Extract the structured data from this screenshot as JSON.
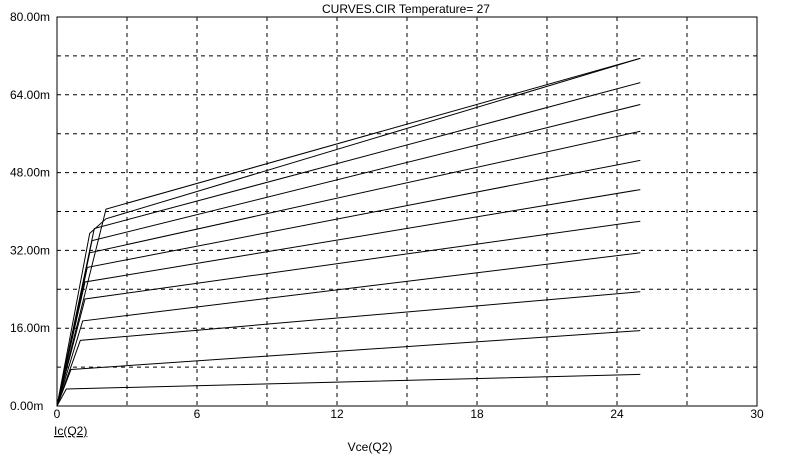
{
  "chart_data": {
    "type": "line",
    "title": "CURVES.CIR Temperature= 27",
    "xlabel": "Vce(Q2)",
    "ylabel": "Ic(Q2)",
    "xlim": [
      0,
      30
    ],
    "ylim": [
      0,
      0.08
    ],
    "x_ticks": [
      0,
      6,
      12,
      18,
      24,
      30
    ],
    "x_tick_labels": [
      "0",
      "6",
      "12",
      "18",
      "24",
      "30"
    ],
    "y_ticks": [
      0,
      0.016,
      0.032,
      0.048,
      0.064,
      0.08
    ],
    "y_tick_labels": [
      "0.00m",
      "16.00m",
      "32.00m",
      "48.00m",
      "64.00m",
      "80.00m"
    ],
    "grid": true,
    "grid_x_divisions": 10,
    "grid_y_divisions": 10,
    "series": [
      {
        "x": [
          0,
          0.4,
          25
        ],
        "values": [
          0,
          0.0035,
          0.0065
        ]
      },
      {
        "x": [
          0,
          0.6,
          25
        ],
        "values": [
          0,
          0.0075,
          0.0155
        ]
      },
      {
        "x": [
          0,
          1.0,
          25
        ],
        "values": [
          0,
          0.0135,
          0.0235
        ]
      },
      {
        "x": [
          0,
          1.1,
          25
        ],
        "values": [
          0,
          0.0175,
          0.0315
        ]
      },
      {
        "x": [
          0,
          1.2,
          25
        ],
        "values": [
          0,
          0.022,
          0.038
        ]
      },
      {
        "x": [
          0,
          1.2,
          25
        ],
        "values": [
          0,
          0.0255,
          0.0445
        ]
      },
      {
        "x": [
          0,
          1.3,
          25
        ],
        "values": [
          0,
          0.0285,
          0.0505
        ]
      },
      {
        "x": [
          0,
          1.4,
          25
        ],
        "values": [
          0,
          0.0315,
          0.0565
        ]
      },
      {
        "x": [
          0,
          1.5,
          25
        ],
        "values": [
          0,
          0.034,
          0.062
        ]
      },
      {
        "x": [
          0,
          1.6,
          25
        ],
        "values": [
          0,
          0.0365,
          0.0665
        ]
      },
      {
        "x": [
          0,
          2.1,
          25
        ],
        "values": [
          0,
          0.0405,
          0.0715
        ]
      },
      {
        "x": [
          0,
          1.4,
          2.1,
          25
        ],
        "values": [
          0,
          0.0355,
          0.0385,
          0.0715
        ]
      }
    ]
  }
}
